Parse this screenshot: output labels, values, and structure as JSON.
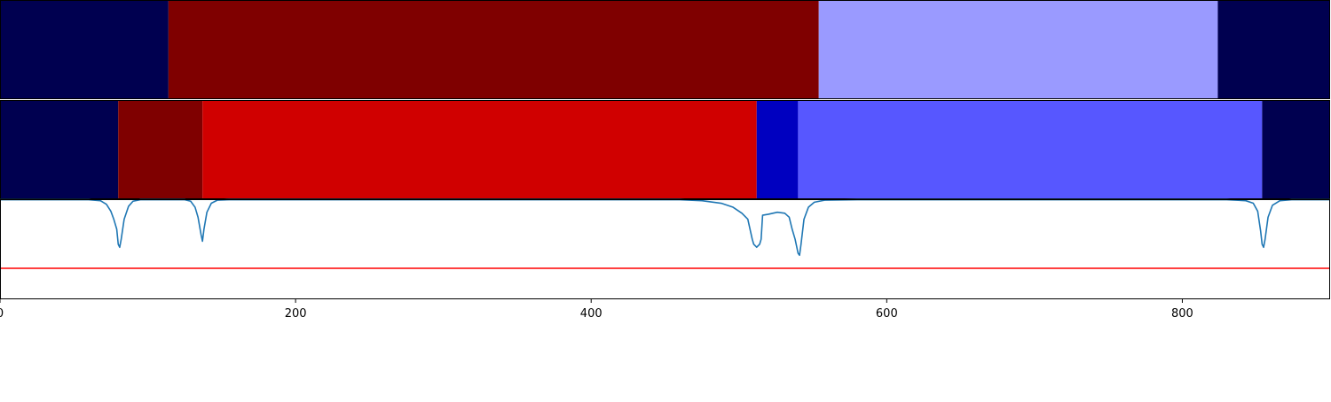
{
  "chart_data": [
    {
      "type": "heatmap",
      "xlim": [
        0,
        900
      ],
      "segments": [
        {
          "start": 0,
          "end": 114,
          "color": "#000050"
        },
        {
          "start": 114,
          "end": 554,
          "color": "#7f0000"
        },
        {
          "start": 554,
          "end": 824,
          "color": "#9a9aff"
        },
        {
          "start": 824,
          "end": 900,
          "color": "#000050"
        }
      ]
    },
    {
      "type": "heatmap",
      "xlim": [
        0,
        900
      ],
      "segments": [
        {
          "start": 0,
          "end": 80,
          "color": "#000050"
        },
        {
          "start": 80,
          "end": 137,
          "color": "#7f0000"
        },
        {
          "start": 137,
          "end": 512,
          "color": "#d00000"
        },
        {
          "start": 512,
          "end": 540,
          "color": "#0000c0"
        },
        {
          "start": 540,
          "end": 854,
          "color": "#5757ff"
        },
        {
          "start": 854,
          "end": 900,
          "color": "#000050"
        }
      ]
    },
    {
      "type": "line",
      "xlim": [
        0,
        900
      ],
      "ylim": [
        0,
        1
      ],
      "x_ticks": [
        0,
        200,
        400,
        600,
        800
      ],
      "x_tick_labels": [
        "0",
        "200",
        "400",
        "600",
        "800"
      ],
      "grid": false,
      "series": [
        {
          "color": "#1f77b4",
          "points": [
            [
              0,
              0.995
            ],
            [
              60,
              0.995
            ],
            [
              68,
              0.985
            ],
            [
              72,
              0.95
            ],
            [
              75,
              0.88
            ],
            [
              77,
              0.8
            ],
            [
              79,
              0.7
            ],
            [
              80,
              0.55
            ],
            [
              81,
              0.52
            ],
            [
              82,
              0.6
            ],
            [
              84,
              0.8
            ],
            [
              87,
              0.93
            ],
            [
              90,
              0.98
            ],
            [
              95,
              0.995
            ],
            [
              125,
              0.995
            ],
            [
              129,
              0.98
            ],
            [
              132,
              0.92
            ],
            [
              134,
              0.82
            ],
            [
              136,
              0.65
            ],
            [
              137,
              0.58
            ],
            [
              138,
              0.7
            ],
            [
              140,
              0.87
            ],
            [
              143,
              0.96
            ],
            [
              147,
              0.99
            ],
            [
              155,
              0.995
            ],
            [
              460,
              0.995
            ],
            [
              475,
              0.985
            ],
            [
              488,
              0.96
            ],
            [
              496,
              0.92
            ],
            [
              502,
              0.86
            ],
            [
              506,
              0.8
            ],
            [
              509,
              0.6
            ],
            [
              510,
              0.55
            ],
            [
              512,
              0.52
            ],
            [
              514,
              0.55
            ],
            [
              515,
              0.6
            ],
            [
              516,
              0.84
            ],
            [
              520,
              0.85
            ],
            [
              526,
              0.87
            ],
            [
              531,
              0.86
            ],
            [
              534,
              0.82
            ],
            [
              536,
              0.7
            ],
            [
              538,
              0.6
            ],
            [
              540,
              0.46
            ],
            [
              541,
              0.44
            ],
            [
              542,
              0.55
            ],
            [
              544,
              0.8
            ],
            [
              547,
              0.92
            ],
            [
              551,
              0.97
            ],
            [
              558,
              0.99
            ],
            [
              580,
              0.995
            ],
            [
              830,
              0.995
            ],
            [
              843,
              0.985
            ],
            [
              848,
              0.96
            ],
            [
              851,
              0.88
            ],
            [
              853,
              0.68
            ],
            [
              854,
              0.55
            ],
            [
              855,
              0.52
            ],
            [
              856,
              0.6
            ],
            [
              858,
              0.82
            ],
            [
              861,
              0.94
            ],
            [
              866,
              0.985
            ],
            [
              874,
              0.995
            ],
            [
              900,
              0.995
            ]
          ]
        },
        {
          "color": "#ff0000",
          "points": [
            [
              0,
              0.31
            ],
            [
              900,
              0.31
            ]
          ]
        }
      ]
    }
  ]
}
